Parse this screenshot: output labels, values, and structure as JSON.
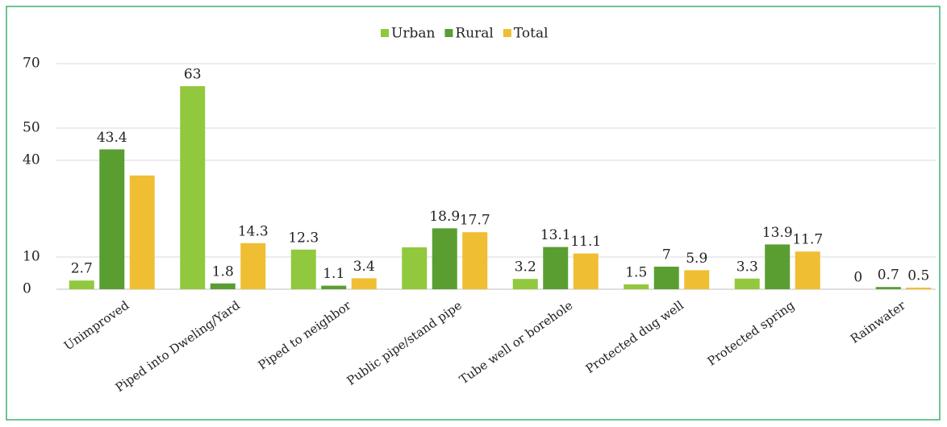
{
  "chart_data": {
    "type": "bar",
    "categories": [
      "Unimproved",
      "Piped into Dweling/Yard",
      "Piped to neighbor",
      "Public pipe/stand pipe",
      "Tube well or borehole",
      "Protected dug well",
      "Protected spring",
      "Rainwater"
    ],
    "series": [
      {
        "name": "Urban",
        "color": "#92c83e",
        "values": [
          2.7,
          63,
          12.3,
          13,
          3.2,
          1.5,
          3.3,
          0
        ],
        "value_labels": [
          "2.7",
          "63",
          "12.3",
          null,
          "3.2",
          "1.5",
          "3.3",
          "0"
        ]
      },
      {
        "name": "Rural",
        "color": "#5a9e32",
        "values": [
          43.4,
          1.8,
          1.1,
          18.9,
          13.1,
          7,
          13.9,
          0.7
        ],
        "value_labels": [
          "43.4",
          "1.8",
          "1.1",
          "18.9",
          "13.1",
          "7",
          "13.9",
          "0.7"
        ]
      },
      {
        "name": "Total",
        "color": "#f0be32",
        "values": [
          35.3,
          14.3,
          3.4,
          17.7,
          11.1,
          5.9,
          11.7,
          0.5
        ],
        "value_labels": [
          null,
          "14.3",
          "3.4",
          "17.7",
          "11.1",
          "5.9",
          "11.7",
          "0.5"
        ]
      }
    ],
    "ylim": [
      0,
      70
    ],
    "yticks": [
      0,
      10,
      40,
      50,
      70
    ],
    "grid": true,
    "legend": "top"
  }
}
